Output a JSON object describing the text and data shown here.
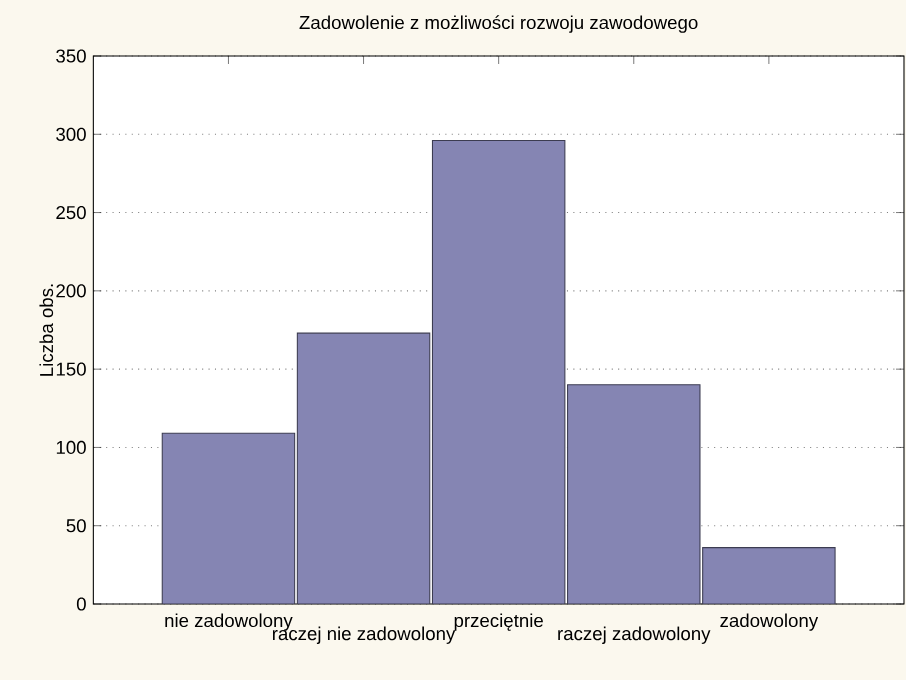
{
  "chart_data": {
    "type": "bar",
    "title": "Zadowolenie z możliwości rozwoju zawodowego",
    "ylabel": "Liczba obs.",
    "categories": [
      "nie zadowolony",
      "raczej nie zadowolony",
      "przeciętnie",
      "raczej zadowolony",
      "zadowolony"
    ],
    "values": [
      109,
      173,
      296,
      140,
      36
    ],
    "color": "#8585b3",
    "ylim": [
      0,
      350
    ],
    "yticks": [
      0,
      50,
      100,
      150,
      200,
      250,
      300,
      350
    ],
    "grid": "y"
  }
}
